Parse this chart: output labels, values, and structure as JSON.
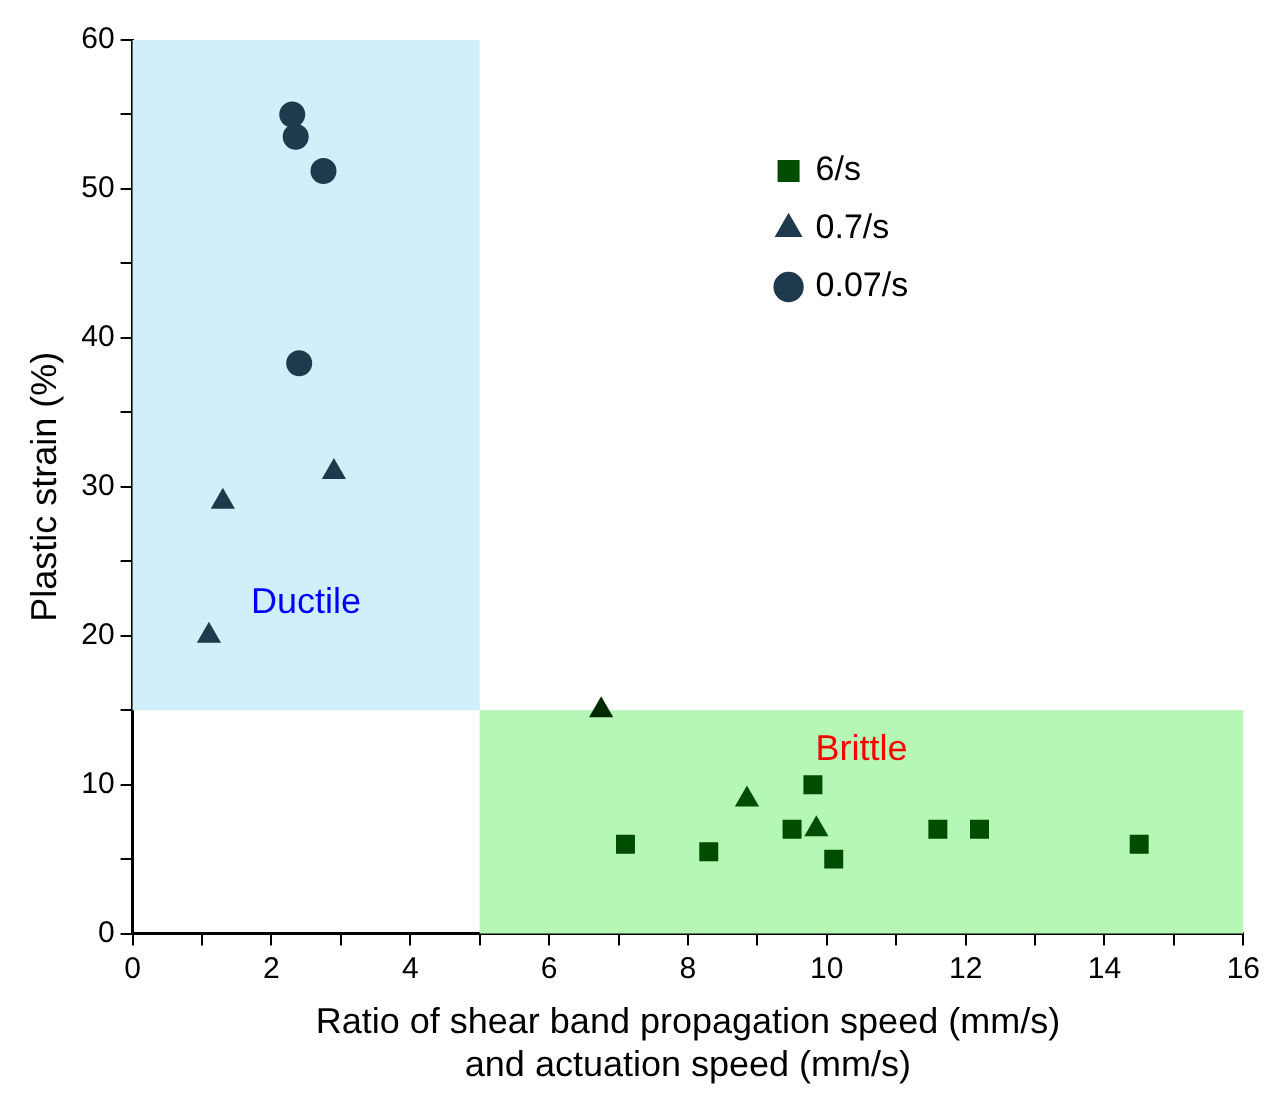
{
  "chart_data": {
    "type": "scatter",
    "xlabel": "Ratio of shear band propagation speed (mm/s)\nand actuation speed (mm/s)",
    "ylabel": "Plastic strain (%)",
    "xlim": [
      0,
      16
    ],
    "xticks": [
      0,
      {
        "value": 1,
        "label": null
      },
      2,
      {
        "value": 3,
        "label": null
      },
      4,
      {
        "value": 5,
        "label": null
      },
      6,
      {
        "value": 7,
        "label": null
      },
      8,
      {
        "value": 9,
        "label": null
      },
      10,
      {
        "value": 11,
        "label": null
      },
      12,
      {
        "value": 13,
        "label": null
      },
      14,
      {
        "value": 15,
        "label": null
      },
      16
    ],
    "ylim": [
      0,
      60
    ],
    "yticks": [
      0,
      {
        "value": 5,
        "label": null
      },
      10,
      {
        "value": 15,
        "label": null
      },
      20,
      {
        "value": 25,
        "label": null
      },
      30,
      {
        "value": 35,
        "label": null
      },
      40,
      {
        "value": 45,
        "label": null
      },
      50,
      {
        "value": 55,
        "label": null
      },
      60
    ],
    "grid": false,
    "legend": "top right",
    "series": [
      {
        "name": "6/s",
        "marker": "square",
        "color": "#004d00",
        "x": [
          7.1,
          8.3,
          9.5,
          9.8,
          10.1,
          11.6,
          12.2,
          14.5
        ],
        "values": [
          6,
          5.5,
          7,
          10,
          5,
          7,
          7,
          6
        ],
        "colors": [
          "#004d00",
          "#004d00",
          "#004d00",
          "#004d00",
          "#004d00",
          "#004d00",
          "#004d00",
          "#004d00"
        ]
      },
      {
        "name": "0.7/s",
        "marker": "triangle",
        "color": "#1f3a4d",
        "x": [
          1.1,
          1.3,
          2.9,
          6.75,
          8.85,
          9.85
        ],
        "values": [
          20,
          29,
          31,
          15,
          9,
          7
        ],
        "colors": [
          "#1f3a4d",
          "#1f3a4d",
          "#1f3a4d",
          "#002a00",
          "#004d00",
          "#004d00"
        ]
      },
      {
        "name": "0.07/s",
        "marker": "circle",
        "color": "#1f3a4d",
        "x": [
          2.3,
          2.35,
          2.75,
          2.4
        ],
        "values": [
          55,
          53.5,
          51.2,
          38.3
        ],
        "colors": [
          "#1f3a4d",
          "#1f3a4d",
          "#1f3a4d",
          "#1f3a4d"
        ]
      }
    ],
    "bands": [
      {
        "axis": "x",
        "from": 0,
        "to": 5,
        "label": "Ductile",
        "color": "#d0effa"
      },
      {
        "axis": "y",
        "from": 0,
        "to": 15,
        "label": "Brittle",
        "color": "#b5f7b5"
      }
    ]
  }
}
